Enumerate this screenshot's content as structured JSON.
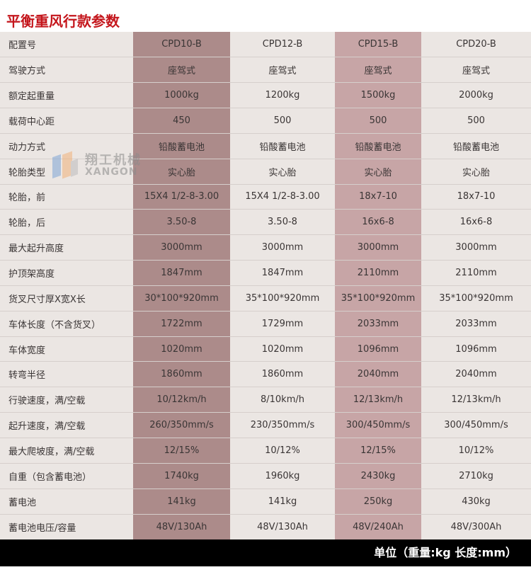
{
  "title": "平衡重风行款参数",
  "columns": [
    "CPD10-B",
    "CPD12-B",
    "CPD15-B",
    "CPD20-B"
  ],
  "header_label": "配置号",
  "rows": [
    {
      "label": "驾驶方式",
      "values": [
        "座驾式",
        "座驾式",
        "座驾式",
        "座驾式"
      ]
    },
    {
      "label": "额定起重量",
      "values": [
        "1000kg",
        "1200kg",
        "1500kg",
        "2000kg"
      ]
    },
    {
      "label": "载荷中心距",
      "values": [
        "450",
        "500",
        "500",
        "500"
      ]
    },
    {
      "label": "动力方式",
      "values": [
        "铅酸蓄电池",
        "铅酸蓄电池",
        "铅酸蓄电池",
        "铅酸蓄电池"
      ]
    },
    {
      "label": "轮胎类型",
      "values": [
        "实心胎",
        "实心胎",
        "实心胎",
        "实心胎"
      ]
    },
    {
      "label": "轮胎，前",
      "values": [
        "15X4 1/2-8-3.00",
        "15X4 1/2-8-3.00",
        "18x7-10",
        "18x7-10"
      ]
    },
    {
      "label": "轮胎，后",
      "values": [
        "3.50-8",
        "3.50-8",
        "16x6-8",
        "16x6-8"
      ]
    },
    {
      "label": "最大起升高度",
      "values": [
        "3000mm",
        "3000mm",
        "3000mm",
        "3000mm"
      ]
    },
    {
      "label": "护顶架高度",
      "values": [
        "1847mm",
        "1847mm",
        "2110mm",
        "2110mm"
      ]
    },
    {
      "label": "货叉尺寸厚X宽X长",
      "values": [
        "30*100*920mm",
        "35*100*920mm",
        "35*100*920mm",
        "35*100*920mm"
      ]
    },
    {
      "label": "车体长度（不含货叉）",
      "values": [
        "1722mm",
        "1729mm",
        "2033mm",
        "2033mm"
      ]
    },
    {
      "label": "车体宽度",
      "values": [
        "1020mm",
        "1020mm",
        "1096mm",
        "1096mm"
      ]
    },
    {
      "label": "转弯半径",
      "values": [
        "1860mm",
        "1860mm",
        "2040mm",
        "2040mm"
      ]
    },
    {
      "label": "行驶速度，满/空载",
      "values": [
        "10/12km/h",
        "8/10km/h",
        "12/13km/h",
        "12/13km/h"
      ]
    },
    {
      "label": "起升速度，满/空载",
      "values": [
        "260/350mm/s",
        "230/350mm/s",
        "300/450mm/s",
        "300/450mm/s"
      ]
    },
    {
      "label": "最大爬坡度，满/空载",
      "values": [
        "12/15%",
        "10/12%",
        "12/15%",
        "10/12%"
      ]
    },
    {
      "label": "自重（包含蓄电池）",
      "values": [
        "1740kg",
        "1960kg",
        "2430kg",
        "2710kg"
      ]
    },
    {
      "label": "蓄电池",
      "values": [
        "141kg",
        "141kg",
        "250kg",
        "430kg"
      ]
    },
    {
      "label": "蓄电池电压/容量",
      "values": [
        "48V/130Ah",
        "48V/130Ah",
        "48V/240Ah",
        "48V/300Ah"
      ]
    }
  ],
  "footer": "单位（重量:kg  长度:mm）",
  "watermark": {
    "cn": "翔工机械",
    "en": "XANGON"
  },
  "colors": {
    "title": "#c4161c",
    "highlight_col1": "#ac8b8a",
    "highlight_col3": "#c7a5a6",
    "background": "#ebe6e3"
  }
}
